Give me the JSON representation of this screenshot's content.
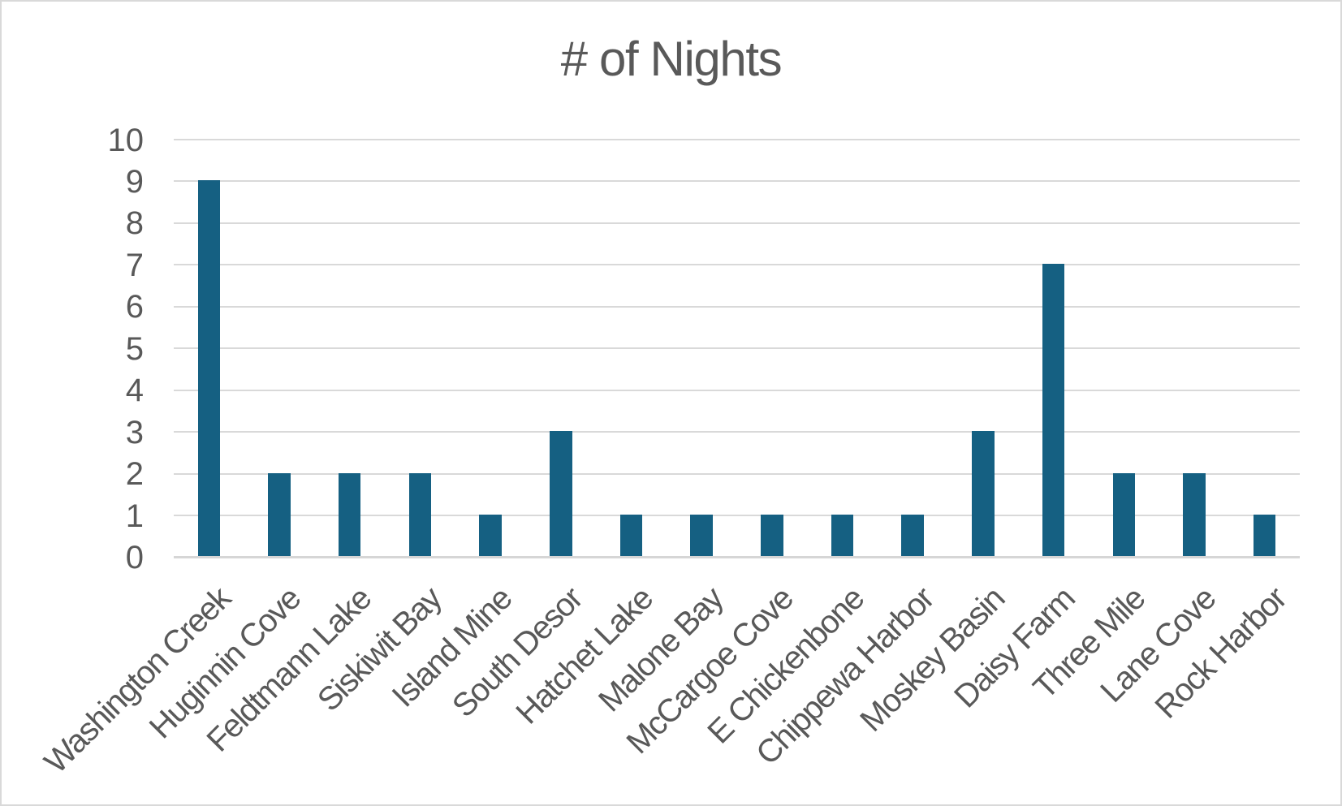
{
  "chart_data": {
    "type": "bar",
    "title": "# of Nights",
    "categories": [
      "Washington Creek",
      "Huginnin Cove",
      "Feldtmann Lake",
      "Siskiwit Bay",
      "Island Mine",
      "South Desor",
      "Hatchet Lake",
      "Malone Bay",
      "McCargoe Cove",
      "E Chickenbone",
      "Chippewa Harbor",
      "Moskey Basin",
      "Daisy Farm",
      "Three Mile",
      "Lane Cove",
      "Rock Harbor"
    ],
    "values": [
      9,
      2,
      2,
      2,
      1,
      3,
      1,
      1,
      1,
      1,
      1,
      3,
      7,
      2,
      2,
      1
    ],
    "xlabel": "",
    "ylabel": "",
    "ylim": [
      0,
      10
    ],
    "ytick_step": 1,
    "yticks": [
      0,
      1,
      2,
      3,
      4,
      5,
      6,
      7,
      8,
      9,
      10
    ],
    "grid": true,
    "legend": false,
    "tick_label_rotation_deg": 45,
    "colors": {
      "bar": "#156082",
      "gridline": "#d9d9d9",
      "axis_line": "#d6d6d6",
      "text": "#595959",
      "border": "#d9d9d9",
      "background": "#ffffff"
    }
  }
}
